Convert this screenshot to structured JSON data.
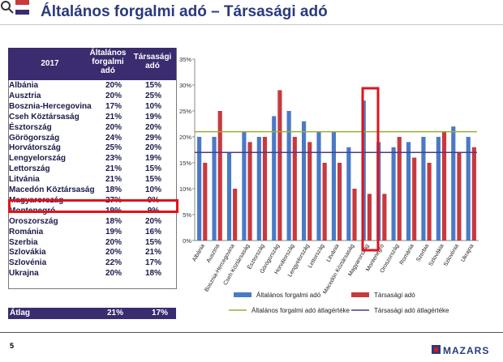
{
  "page": {
    "title": "Általános forgalmi adó – Társasági adó",
    "page_number": "5",
    "brand": "MAZARS"
  },
  "table": {
    "year_header": "2017",
    "col1_header": [
      "Általános",
      "forgalmi",
      "adó"
    ],
    "col2_header": [
      "Társasági",
      "adó"
    ],
    "highlight_row": "Magyarország",
    "average_label": "Átlag",
    "average_vat": "21%",
    "average_cit": "17%"
  },
  "chart_data": {
    "type": "bar",
    "categories": [
      "Albánia",
      "Ausztria",
      "Bosznia-Hercegovina",
      "Cseh Köztársaság",
      "Észtország",
      "Görögország",
      "Horvátország",
      "Lengyelország",
      "Lettország",
      "Litvánia",
      "Macedón Köztársaság",
      "Magyarország",
      "Montenegró",
      "Oroszország",
      "Románia",
      "Szerbia",
      "Szlovákia",
      "Szlovénia",
      "Ukrajna"
    ],
    "series": [
      {
        "name": "Általános forgalmi adó",
        "values": [
          20,
          20,
          17,
          21,
          20,
          24,
          25,
          23,
          21,
          21,
          18,
          27,
          19,
          18,
          19,
          20,
          20,
          22,
          20
        ],
        "color": "#4a7ac6"
      },
      {
        "name": "Társasági adó",
        "values": [
          15,
          25,
          10,
          19,
          20,
          29,
          20,
          19,
          15,
          15,
          10,
          9,
          9,
          20,
          16,
          15,
          21,
          17,
          18
        ],
        "color": "#c8393d"
      }
    ],
    "averages": [
      {
        "name": "Általános forgalmi adó átlagértéke",
        "value": 21,
        "color": "#9aad3a"
      },
      {
        "name": "Társasági adó átlagértéke",
        "value": 17,
        "color": "#4b3a8c"
      }
    ],
    "y_ticks": [
      "0%",
      "5%",
      "10%",
      "15%",
      "20%",
      "25%",
      "30%",
      "35%"
    ],
    "ylim": [
      0,
      35
    ],
    "grid": false,
    "legend": "bottom",
    "highlight_category": "Magyarország"
  }
}
